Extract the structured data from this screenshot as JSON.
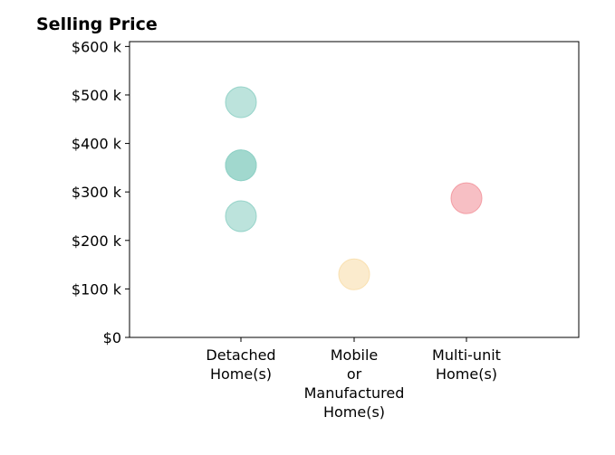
{
  "chart_data": {
    "type": "scatter",
    "title": "Selling Price",
    "xlabel": "",
    "ylabel": "",
    "categories": [
      [
        "Detached",
        "Home(s)"
      ],
      [
        "Mobile",
        "or",
        "Manufactured",
        "Home(s)"
      ],
      [
        "Multi-unit",
        "Home(s)"
      ]
    ],
    "ylim": [
      0,
      610000
    ],
    "yticks": [
      0,
      100000,
      200000,
      300000,
      400000,
      500000,
      600000
    ],
    "ytick_labels": [
      "$0",
      "$100 k",
      "$200 k",
      "$300 k",
      "$400 k",
      "$500 k",
      "$600 k"
    ],
    "grid": false,
    "points": [
      {
        "category": 0,
        "y": 485000,
        "color": "#8fd0c5"
      },
      {
        "category": 0,
        "y": 355000,
        "color": "#8fd0c5"
      },
      {
        "category": 0,
        "y": 355000,
        "color": "#8fd0c5"
      },
      {
        "category": 0,
        "y": 250000,
        "color": "#8fd0c5"
      },
      {
        "category": 1,
        "y": 130000,
        "color": "#f8deab"
      },
      {
        "category": 2,
        "y": 287000,
        "color": "#f2959c"
      }
    ]
  }
}
